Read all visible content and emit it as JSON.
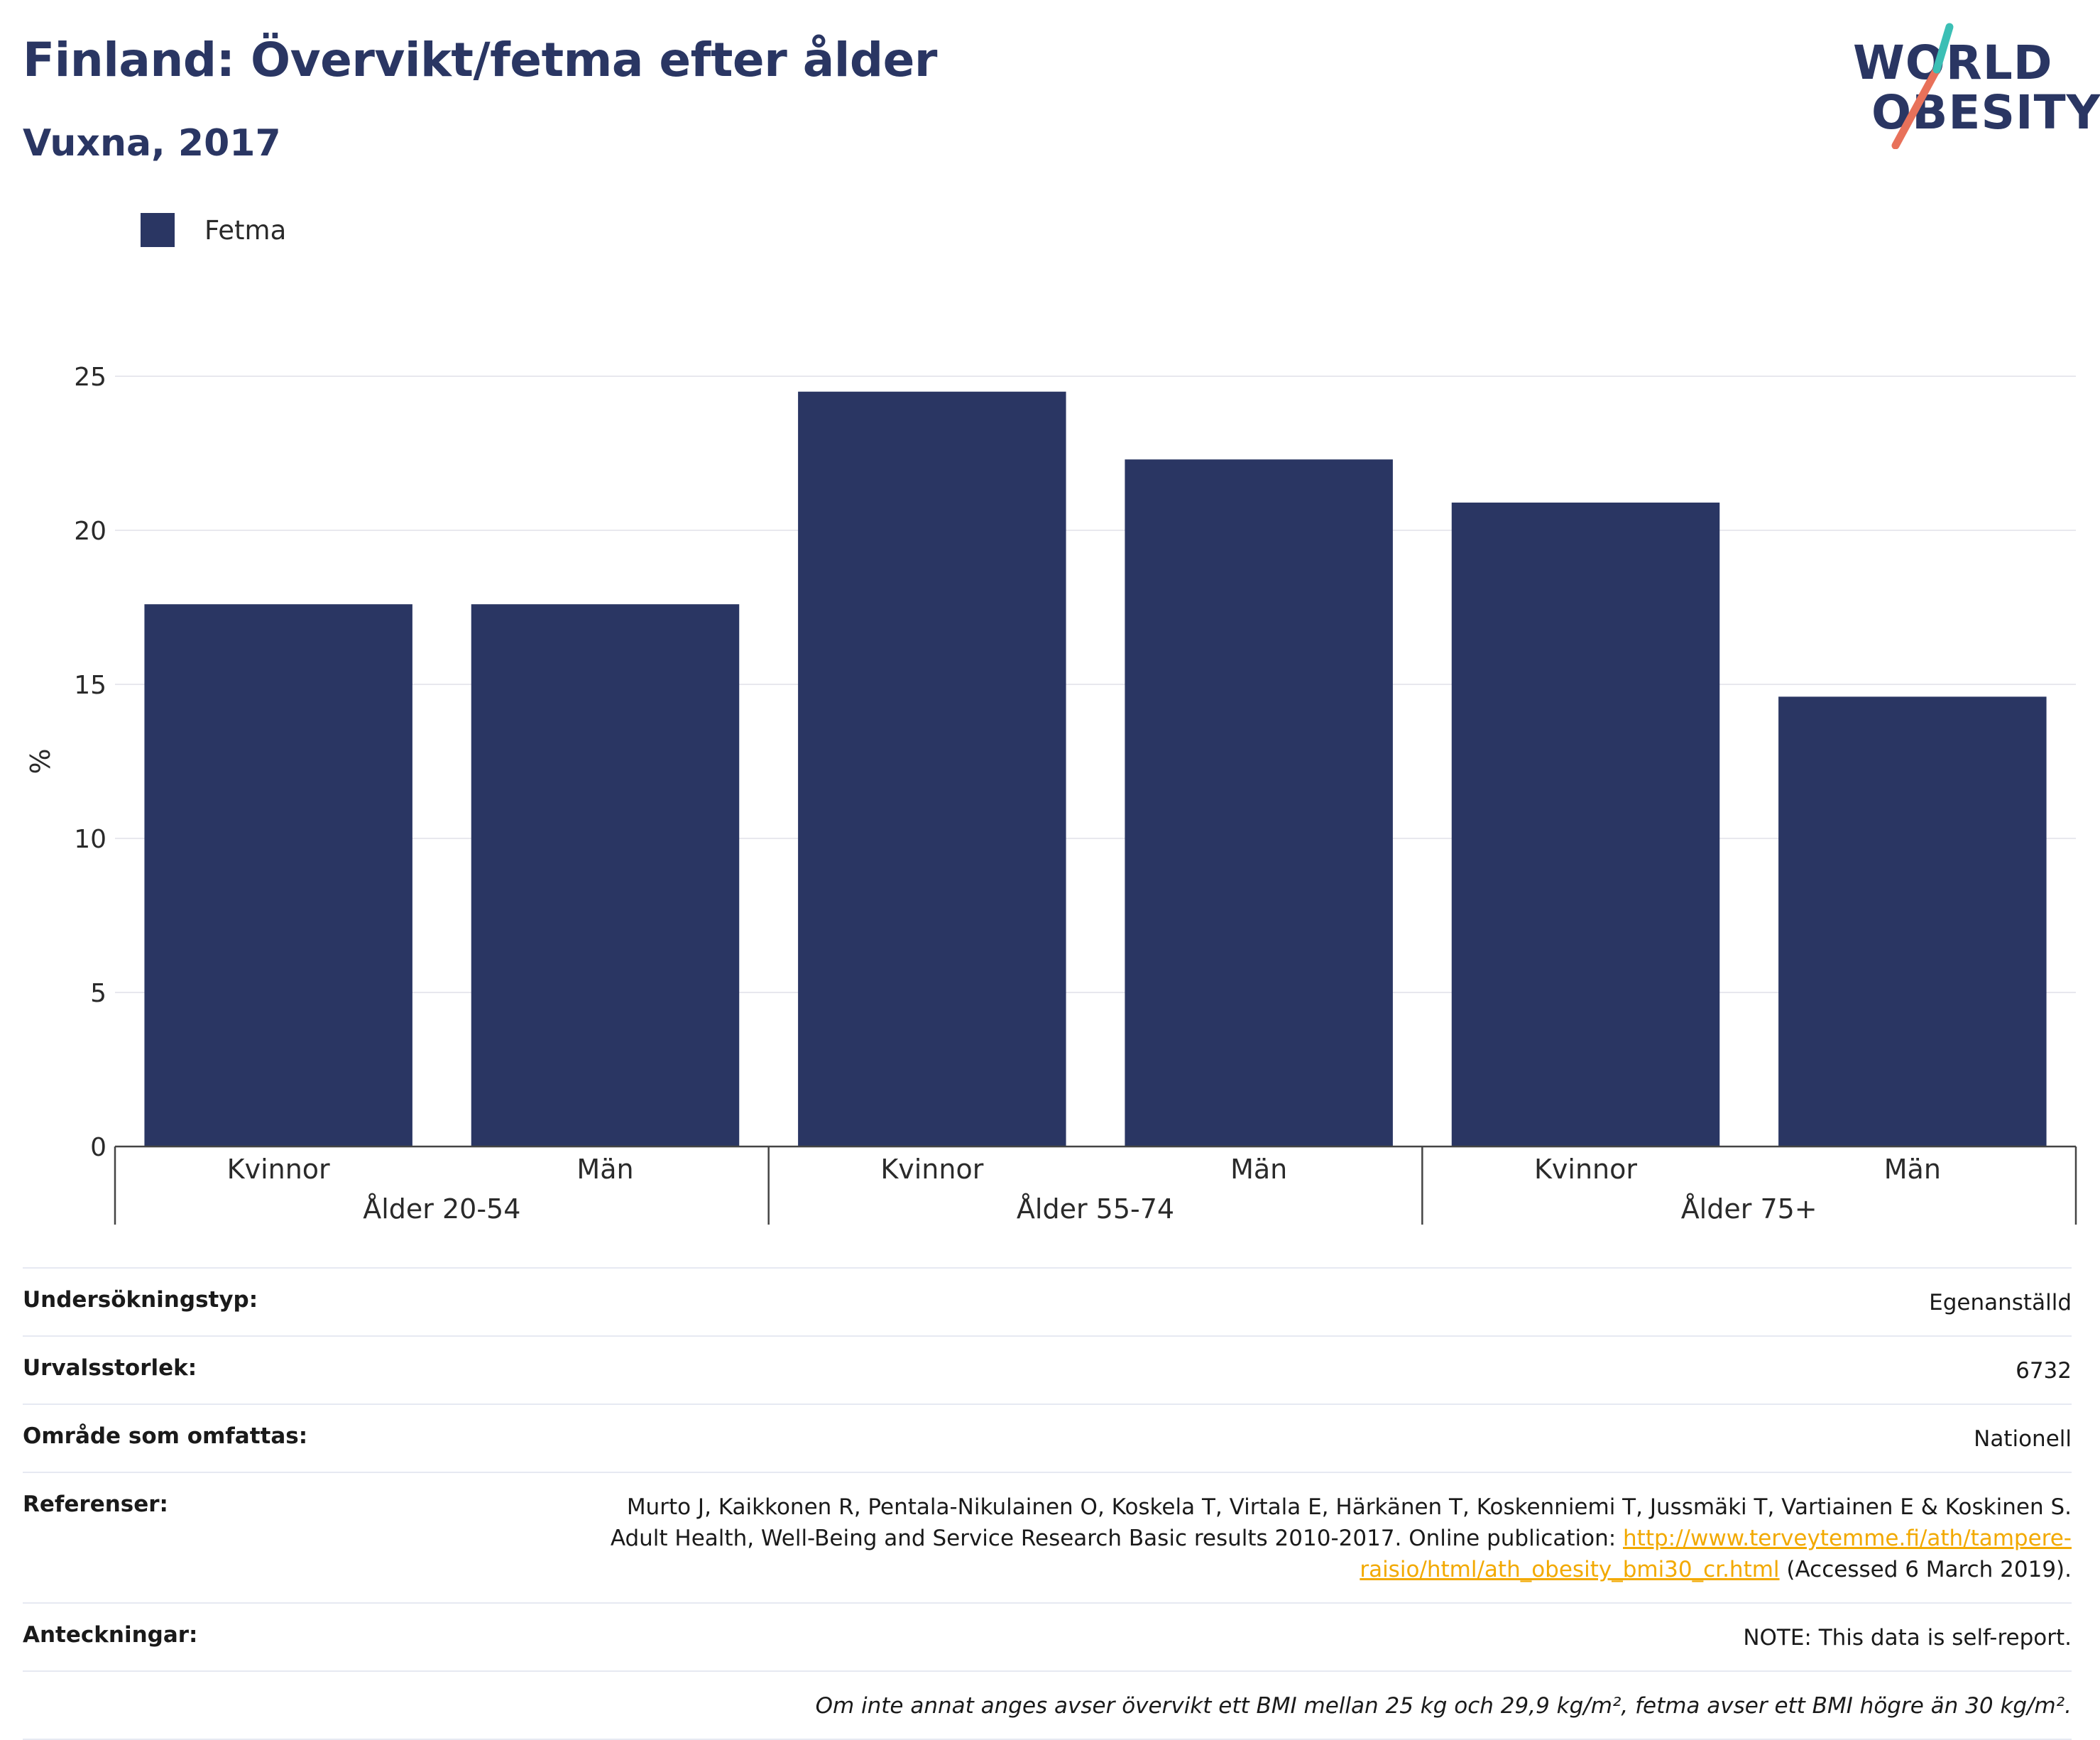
{
  "title": "Finland: Övervikt/fetma efter ålder",
  "subtitle": "Vuxna, 2017",
  "logo": {
    "line1": "WORLD",
    "line2": "OBESITY"
  },
  "legend": [
    {
      "label": "Fetma",
      "color": "#2a3663"
    }
  ],
  "chart_data": {
    "type": "bar",
    "ylabel": "%",
    "ylim": [
      0,
      25
    ],
    "yticks": [
      0,
      5,
      10,
      15,
      20,
      25
    ],
    "groups": [
      {
        "label": "Ålder 20-54",
        "categories": [
          "Kvinnor",
          "Män"
        ],
        "values": [
          17.6,
          17.6
        ]
      },
      {
        "label": "Ålder 55-74",
        "categories": [
          "Kvinnor",
          "Män"
        ],
        "values": [
          24.5,
          22.3
        ]
      },
      {
        "label": "Ålder 75+",
        "categories": [
          "Kvinnor",
          "Män"
        ],
        "values": [
          20.9,
          14.6
        ]
      }
    ],
    "series": [
      {
        "name": "Fetma",
        "color": "#2a3663"
      }
    ],
    "grid": true
  },
  "info": {
    "survey_type_label": "Undersökningstyp:",
    "survey_type_value": "Egenanställd",
    "sample_size_label": "Urvalsstorlek:",
    "sample_size_value": "6732",
    "area_label": "Område som omfattas:",
    "area_value": "Nationell",
    "references_label": "Referenser:",
    "references_text_1": "Murto J, Kaikkonen R, Pentala-Nikulainen O, Koskela T, Virtala E, Härkänen T, Koskenniemi T, Jussmäki T, Vartiainen E & Koskinen S.",
    "references_text_2": "Adult Health, Well-Being and Service Research Basic results 2010-2017. Online publication: ",
    "references_link": "http://www.terveytemme.fi/ath/tampere-raisio/html/ath_obesity_bmi30_cr.html",
    "references_suffix": " (Accessed 6 March 2019).",
    "notes_label": "Anteckningar:",
    "notes_value": "NOTE: This data is self-report.",
    "footnote": "Om inte annat anges avser övervikt ett BMI mellan 25 kg och 29,9 kg/m², fetma avser ett BMI högre än 30 kg/m²."
  }
}
